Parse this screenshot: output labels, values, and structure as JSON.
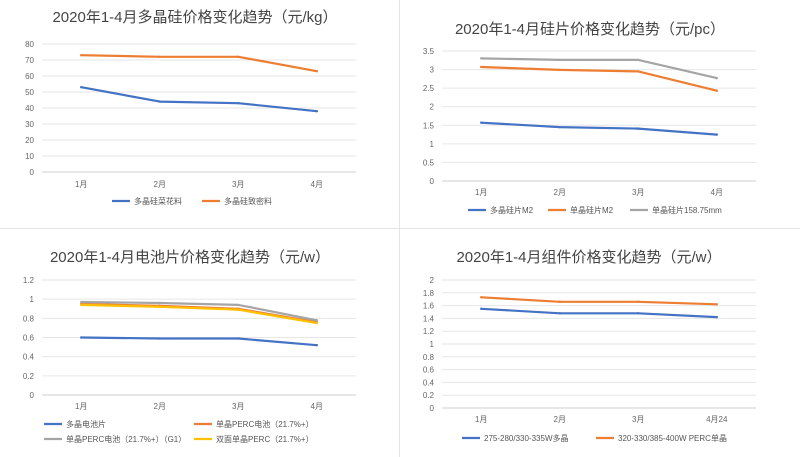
{
  "chart_data": [
    {
      "type": "line",
      "title": "2020年1-4月多晶硅价格变化趋势（元/kg）",
      "categories": [
        "1月",
        "2月",
        "3月",
        "4月"
      ],
      "ylim": [
        0,
        80
      ],
      "yticks": [
        "0",
        "10",
        "20",
        "30",
        "40",
        "50",
        "60",
        "70",
        "80"
      ],
      "grid": true,
      "legend_position": "bottom",
      "series": [
        {
          "name": "多晶硅菜花料",
          "color": "#4472c4",
          "values": [
            53,
            44,
            43,
            38
          ]
        },
        {
          "name": "多晶硅致密料",
          "color": "#ed7d31",
          "values": [
            73,
            72,
            72,
            63
          ]
        }
      ]
    },
    {
      "type": "line",
      "title": "2020年1-4月硅片价格变化趋势（元/pc）",
      "categories": [
        "1月",
        "2月",
        "3月",
        "4月"
      ],
      "ylim": [
        0,
        3.5
      ],
      "yticks": [
        "0",
        "0.5",
        "1",
        "1.5",
        "2",
        "2.5",
        "3",
        "3.5"
      ],
      "grid": true,
      "legend_position": "bottom",
      "series": [
        {
          "name": "多晶硅片M2",
          "color": "#4472c4",
          "values": [
            1.57,
            1.45,
            1.41,
            1.25
          ]
        },
        {
          "name": "单晶硅片M2",
          "color": "#ed7d31",
          "values": [
            3.07,
            2.99,
            2.95,
            2.43
          ]
        },
        {
          "name": "单晶硅片158.75mm",
          "color": "#a5a5a5",
          "values": [
            3.3,
            3.26,
            3.26,
            2.77
          ]
        }
      ]
    },
    {
      "type": "line",
      "title": "2020年1-4月电池片价格变化趋势（元/w）",
      "categories": [
        "1月",
        "2月",
        "3月",
        "4月"
      ],
      "ylim": [
        0,
        1.2
      ],
      "yticks": [
        "0",
        "0.2",
        "0.4",
        "0.6",
        "0.8",
        "1",
        "1.2"
      ],
      "grid": true,
      "legend_position": "bottom",
      "series": [
        {
          "name": "多晶电池片",
          "color": "#4472c4",
          "values": [
            0.6,
            0.59,
            0.59,
            0.52
          ]
        },
        {
          "name": "单晶PERC电池（21.7%+）",
          "color": "#ed7d31",
          "values": [
            0.95,
            0.93,
            0.9,
            0.76
          ]
        },
        {
          "name": "单晶PERC电池（21.7%+）（G1）",
          "color": "#a5a5a5",
          "values": [
            0.97,
            0.96,
            0.94,
            0.78
          ]
        },
        {
          "name": "双面单晶PERC（21.7%+）",
          "color": "#ffc000",
          "values": [
            0.94,
            0.92,
            0.89,
            0.75
          ]
        }
      ]
    },
    {
      "type": "line",
      "title": "2020年1-4月组件价格变化趋势（元/w）",
      "categories": [
        "1月",
        "2月",
        "3月",
        "4月24"
      ],
      "ylim": [
        0,
        2
      ],
      "yticks": [
        "0",
        "0.2",
        "0.4",
        "0.6",
        "0.8",
        "1",
        "1.2",
        "1.4",
        "1.6",
        "1.8",
        "2"
      ],
      "grid": true,
      "legend_position": "bottom",
      "series": [
        {
          "name": "275-280/330-335W多晶",
          "color": "#4472c4",
          "values": [
            1.55,
            1.48,
            1.48,
            1.42
          ]
        },
        {
          "name": "320-330/385-400W PERC单晶",
          "color": "#ed7d31",
          "values": [
            1.73,
            1.66,
            1.66,
            1.62
          ]
        }
      ]
    }
  ]
}
